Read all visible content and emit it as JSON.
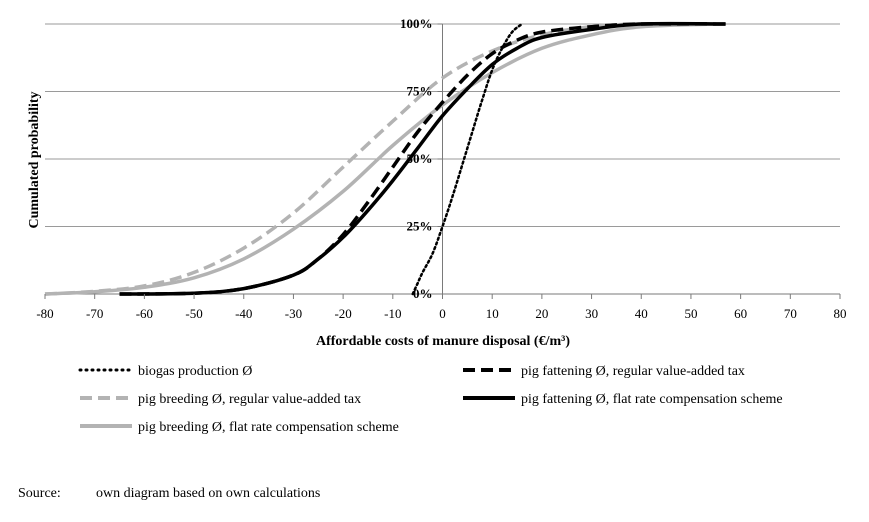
{
  "chart_data": {
    "type": "line",
    "xlabel": "Affordable costs of manure disposal (€/m³)",
    "ylabel": "Cumulated probability",
    "xlim": [
      -80,
      80
    ],
    "ylim": [
      0,
      1
    ],
    "x_ticks": [
      "-80",
      "-70",
      "-60",
      "-50",
      "-40",
      "-30",
      "-20",
      "-10",
      "0",
      "10",
      "20",
      "30",
      "40",
      "50",
      "60",
      "70",
      "80"
    ],
    "y_ticks": [
      "0%",
      "25%",
      "50%",
      "75%",
      "100%"
    ],
    "grid": "horizontal",
    "legend_position": "bottom",
    "series": [
      {
        "name": "biogas production Ø",
        "color": "#000000",
        "style": "dotted",
        "points": [
          [
            -6,
            0
          ],
          [
            -5,
            0.04
          ],
          [
            -4,
            0.08
          ],
          [
            -2,
            0.15
          ],
          [
            0,
            0.25
          ],
          [
            2,
            0.36
          ],
          [
            4,
            0.48
          ],
          [
            6,
            0.6
          ],
          [
            8,
            0.72
          ],
          [
            10,
            0.83
          ],
          [
            12,
            0.91
          ],
          [
            14,
            0.97
          ],
          [
            16,
            1.0
          ]
        ]
      },
      {
        "name": "pig fattening Ø, regular value-added tax",
        "color": "#000000",
        "style": "dashed",
        "points": [
          [
            -65,
            0.0
          ],
          [
            -50,
            0.003
          ],
          [
            -40,
            0.02
          ],
          [
            -30,
            0.07
          ],
          [
            -25,
            0.13
          ],
          [
            -20,
            0.22
          ],
          [
            -15,
            0.34
          ],
          [
            -10,
            0.47
          ],
          [
            -5,
            0.6
          ],
          [
            0,
            0.71
          ],
          [
            5,
            0.81
          ],
          [
            10,
            0.89
          ],
          [
            15,
            0.94
          ],
          [
            20,
            0.97
          ],
          [
            30,
            0.99
          ],
          [
            40,
            1.0
          ],
          [
            57,
            1.0
          ]
        ]
      },
      {
        "name": "pig breeding Ø, regular value-added tax",
        "color": "#b3b3b3",
        "style": "dashed",
        "points": [
          [
            -80,
            0.0
          ],
          [
            -70,
            0.01
          ],
          [
            -60,
            0.03
          ],
          [
            -50,
            0.08
          ],
          [
            -40,
            0.17
          ],
          [
            -30,
            0.3
          ],
          [
            -20,
            0.47
          ],
          [
            -10,
            0.64
          ],
          [
            0,
            0.8
          ],
          [
            10,
            0.9
          ],
          [
            20,
            0.96
          ],
          [
            30,
            0.99
          ],
          [
            40,
            1.0
          ],
          [
            55,
            1.0
          ]
        ]
      },
      {
        "name": "pig fattening Ø, flat rate compensation scheme",
        "color": "#000000",
        "style": "solid",
        "points": [
          [
            -65,
            0.0
          ],
          [
            -50,
            0.003
          ],
          [
            -40,
            0.02
          ],
          [
            -30,
            0.07
          ],
          [
            -25,
            0.13
          ],
          [
            -20,
            0.21
          ],
          [
            -15,
            0.31
          ],
          [
            -10,
            0.42
          ],
          [
            -5,
            0.54
          ],
          [
            0,
            0.66
          ],
          [
            5,
            0.76
          ],
          [
            10,
            0.85
          ],
          [
            15,
            0.91
          ],
          [
            20,
            0.95
          ],
          [
            30,
            0.98
          ],
          [
            40,
            1.0
          ],
          [
            57,
            1.0
          ]
        ]
      },
      {
        "name": "pig breeding Ø, flat rate compensation scheme",
        "color": "#b3b3b3",
        "style": "solid",
        "points": [
          [
            -80,
            0.0
          ],
          [
            -70,
            0.008
          ],
          [
            -60,
            0.025
          ],
          [
            -50,
            0.06
          ],
          [
            -40,
            0.13
          ],
          [
            -30,
            0.24
          ],
          [
            -20,
            0.38
          ],
          [
            -10,
            0.55
          ],
          [
            0,
            0.7
          ],
          [
            10,
            0.82
          ],
          [
            20,
            0.91
          ],
          [
            30,
            0.96
          ],
          [
            40,
            0.99
          ],
          [
            55,
            1.0
          ]
        ]
      }
    ]
  },
  "source": {
    "label": "Source:",
    "text": "own diagram based on own calculations"
  }
}
